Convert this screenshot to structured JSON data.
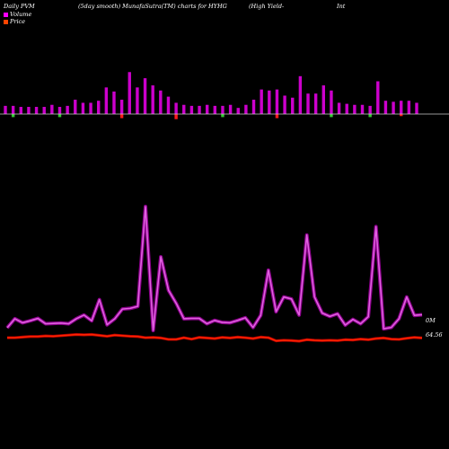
{
  "header": {
    "items": [
      "Daily PVM",
      "(5day smooth) MunafaSutra(TM) charts for HYHG",
      "(High Yield-",
      "Int"
    ]
  },
  "legend": {
    "volume_label": "Volume",
    "price_label": "Price",
    "volume_color": "#ff00ff",
    "price_color": "#ff4400"
  },
  "colors": {
    "bar_up": "#cc00cc",
    "bar_down_red": "#ff1a1a",
    "bar_down_green": "#33cc33",
    "volume_line": "#e060e0",
    "price_line": "#ff2200",
    "baseline": "#cccccc"
  },
  "right_labels": {
    "volume": "0M",
    "price": "64.56"
  },
  "chart_data": [
    {
      "type": "bar",
      "title": "Daily PVM",
      "grid": false,
      "values": [
        0.8,
        0.8,
        0.7,
        0.7,
        0.7,
        0.7,
        0.9,
        0.7,
        0.8,
        1.4,
        1.1,
        1.1,
        1.3,
        2.6,
        2.2,
        1.4,
        4.1,
        2.6,
        3.5,
        2.8,
        2.3,
        1.7,
        1.1,
        0.9,
        0.8,
        0.8,
        0.9,
        0.8,
        0.8,
        0.9,
        0.6,
        0.9,
        1.4,
        2.4,
        2.3,
        2.4,
        1.8,
        1.6,
        3.7,
        2.0,
        2.0,
        2.8,
        2.3,
        1.1,
        1.0,
        0.9,
        0.9,
        0.8,
        3.2,
        1.3,
        1.2,
        1.3,
        1.3,
        1.1
      ],
      "down_markers": {
        "indices": [
          1,
          7,
          15,
          22,
          28,
          35,
          42,
          47,
          51
        ],
        "values": [
          -0.3,
          -0.3,
          -0.4,
          -0.5,
          -0.3,
          -0.4,
          -0.3,
          -0.3,
          -0.2
        ],
        "colors": [
          "green",
          "green",
          "red",
          "red",
          "green",
          "red",
          "green",
          "green",
          "red"
        ]
      }
    },
    {
      "type": "line",
      "series": [
        {
          "name": "Volume",
          "values": [
            0.8,
            3.5,
            2.3,
            2.9,
            3.6,
            2.0,
            2.1,
            2.2,
            2.0,
            3.5,
            4.6,
            2.9,
            9.2,
            1.7,
            3.5,
            6.4,
            6.6,
            7.2,
            37,
            0,
            22,
            12,
            8.1,
            3.5,
            3.6,
            3.6,
            2.0,
            3.0,
            2.4,
            2.3,
            3.0,
            3.8,
            0.9,
            4.5,
            18,
            5.6,
            10,
            9.4,
            4.6,
            28.5,
            10,
            5.2,
            4.2,
            5.0,
            1.6,
            3.3,
            2.0,
            4.1,
            31,
            0.5,
            0.9,
            3.5,
            10,
            4.5,
            4.7
          ]
        },
        {
          "name": "Price",
          "values": [
            0.3,
            0.3,
            0.5,
            0.7,
            0.7,
            0.9,
            0.8,
            1.0,
            1.2,
            1.4,
            1.3,
            1.4,
            1.1,
            0.8,
            1.2,
            1.0,
            0.8,
            0.7,
            0.3,
            0.4,
            0.2,
            -0.3,
            -0.3,
            0.3,
            -0.2,
            0.4,
            0.2,
            0.0,
            0.4,
            0.2,
            0.5,
            0.3,
            0.0,
            0.5,
            0.3,
            -0.8,
            -0.6,
            -0.7,
            -0.9,
            -0.4,
            -0.6,
            -0.7,
            -0.6,
            -0.7,
            -0.4,
            -0.5,
            -0.2,
            -0.4,
            0.0,
            0.2,
            -0.2,
            -0.3,
            0.1,
            0.4,
            0.2
          ]
        }
      ]
    }
  ]
}
